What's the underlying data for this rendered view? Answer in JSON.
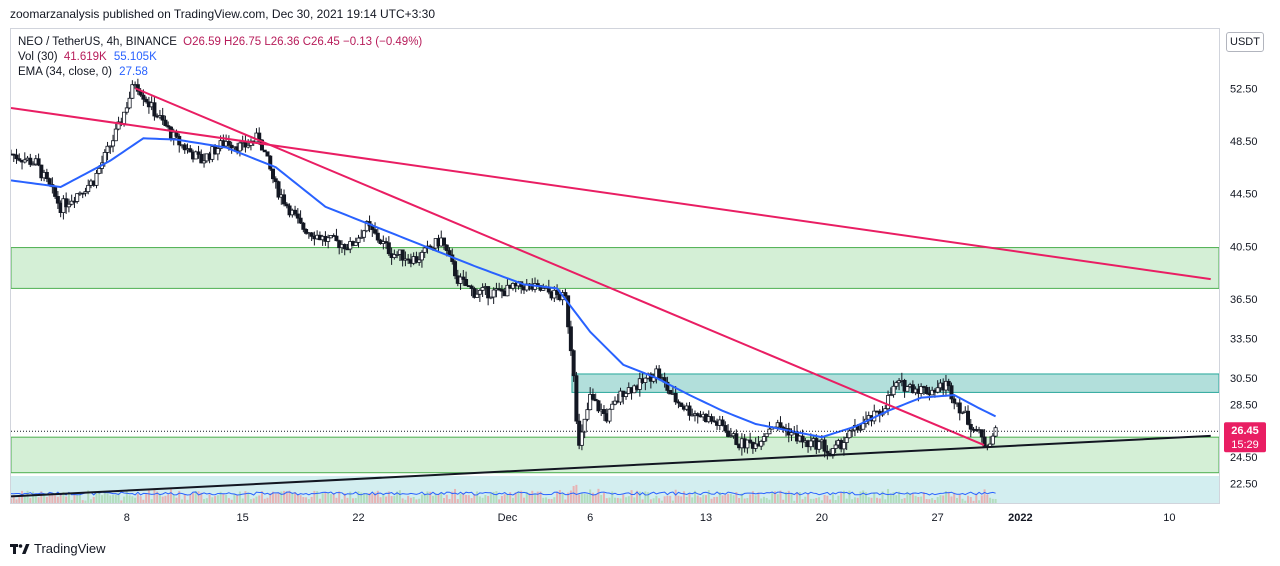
{
  "header": {
    "published": "zoomarzanalysis published on TradingView.com, Dec 30, 2021 19:14 UTC+3:30"
  },
  "legend": {
    "symbol": "NEO / TetherUS, 4h, BINANCE",
    "ohlc": "O26.59  H26.75  L26.36  C26.45  −0.13 (−0.49%)",
    "vol_label": "Vol (30)",
    "vol_value1": "41.619K",
    "vol_value2": "55.105K",
    "ema_label": "EMA (34, close, 0)",
    "ema_value": "27.58"
  },
  "currency_button": "USDT",
  "footer": {
    "brand": "TradingView"
  },
  "price_badge": {
    "price": "26.45",
    "countdown": "15:29",
    "color": "#e91e63"
  },
  "colors": {
    "up": "#26a69a",
    "down": "#ef5350",
    "candle_body": "#131722",
    "ema": "#2962ff",
    "trendline": "#e91e63",
    "support_line": "#131722",
    "zone_green": "#d4efd6",
    "zone_teal": "#b2dfdb",
    "volume_bg": "#d3eef0"
  },
  "chart_data": {
    "type": "candlestick",
    "symbol": "NEO / TetherUS",
    "interval": "4h",
    "exchange": "BINANCE",
    "y_ticks": [
      52.5,
      48.5,
      44.5,
      40.5,
      36.5,
      33.5,
      30.5,
      28.5,
      26.45,
      24.5,
      22.5
    ],
    "y_tick_labels": [
      "52.50",
      "48.50",
      "44.50",
      "40.50",
      "36.50",
      "33.50",
      "30.50",
      "28.50",
      "24.50",
      "22.50"
    ],
    "x_tick_labels": [
      "8",
      "15",
      "22",
      "Dec",
      "6",
      "13",
      "20",
      "27",
      "2022",
      "10"
    ],
    "x_tick_days": [
      7,
      14,
      21,
      30,
      35,
      42,
      49,
      56,
      61,
      70
    ],
    "ylim": [
      21.0,
      57.0
    ],
    "x_range_days": [
      0.0,
      73.0
    ],
    "last_price": 26.45,
    "ohlc_last": {
      "open": 26.59,
      "high": 26.75,
      "low": 26.36,
      "close": 26.45,
      "change": -0.13,
      "change_pct": -0.49
    },
    "zones": [
      {
        "name": "resistance-zone-upper",
        "low": 37.3,
        "high": 40.4,
        "style": "green"
      },
      {
        "name": "resistance-zone-middle",
        "low": 29.4,
        "high": 30.8,
        "style": "teal"
      },
      {
        "name": "support-zone-lower",
        "low": 23.3,
        "high": 26.0,
        "style": "green"
      }
    ],
    "trendlines": [
      {
        "name": "long-downtrend-line",
        "points": [
          [
            0.0,
            51.0
          ],
          [
            72.5,
            38.0
          ]
        ]
      },
      {
        "name": "steep-downtrend-line",
        "points": [
          [
            7.5,
            52.5
          ],
          [
            58.8,
            25.4
          ]
        ]
      },
      {
        "name": "rising-support-line",
        "points": [
          [
            0.0,
            21.5
          ],
          [
            72.5,
            26.1
          ]
        ]
      }
    ],
    "price_path": [
      [
        0.0,
        47.5
      ],
      [
        1.5,
        46.8
      ],
      [
        3.0,
        43.5
      ],
      [
        5.0,
        45.5
      ],
      [
        6.5,
        49.5
      ],
      [
        7.5,
        53.0
      ],
      [
        8.5,
        51.0
      ],
      [
        10.0,
        48.5
      ],
      [
        11.5,
        47.0
      ],
      [
        13.0,
        48.5
      ],
      [
        14.0,
        48.0
      ],
      [
        15.0,
        48.8
      ],
      [
        16.0,
        45.0
      ],
      [
        17.5,
        42.0
      ],
      [
        19.0,
        41.0
      ],
      [
        20.5,
        40.5
      ],
      [
        21.5,
        42.0
      ],
      [
        23.0,
        40.0
      ],
      [
        24.5,
        39.5
      ],
      [
        26.0,
        41.0
      ],
      [
        27.0,
        38.0
      ],
      [
        28.0,
        37.0
      ],
      [
        29.5,
        37.0
      ],
      [
        31.0,
        37.5
      ],
      [
        32.5,
        37.0
      ],
      [
        33.5,
        36.5
      ],
      [
        34.0,
        31.0
      ],
      [
        34.3,
        25.0
      ],
      [
        35.0,
        29.0
      ],
      [
        36.0,
        27.5
      ],
      [
        37.0,
        29.5
      ],
      [
        38.0,
        30.0
      ],
      [
        39.0,
        31.0
      ],
      [
        40.0,
        29.0
      ],
      [
        41.0,
        28.0
      ],
      [
        42.0,
        27.5
      ],
      [
        43.0,
        26.8
      ],
      [
        44.0,
        25.5
      ],
      [
        45.0,
        25.5
      ],
      [
        46.0,
        27.0
      ],
      [
        47.0,
        26.5
      ],
      [
        48.0,
        25.5
      ],
      [
        49.0,
        25.5
      ],
      [
        49.5,
        24.6
      ],
      [
        50.5,
        26.0
      ],
      [
        51.5,
        27.0
      ],
      [
        52.5,
        27.8
      ],
      [
        53.5,
        30.0
      ],
      [
        54.5,
        29.8
      ],
      [
        55.5,
        29.5
      ],
      [
        56.5,
        30.0
      ],
      [
        57.0,
        29.0
      ],
      [
        57.7,
        27.5
      ],
      [
        58.5,
        26.2
      ],
      [
        58.9,
        25.4
      ],
      [
        59.5,
        26.45
      ]
    ],
    "ema_34_path": [
      [
        0.0,
        45.5
      ],
      [
        3.0,
        45.0
      ],
      [
        6.0,
        47.0
      ],
      [
        8.0,
        48.7
      ],
      [
        10.0,
        48.6
      ],
      [
        13.0,
        48.0
      ],
      [
        16.0,
        46.5
      ],
      [
        19.0,
        43.5
      ],
      [
        22.0,
        42.0
      ],
      [
        25.0,
        40.5
      ],
      [
        28.0,
        39.0
      ],
      [
        31.0,
        37.6
      ],
      [
        33.0,
        37.3
      ],
      [
        35.0,
        34.0
      ],
      [
        37.0,
        31.5
      ],
      [
        39.0,
        30.5
      ],
      [
        41.0,
        29.2
      ],
      [
        43.0,
        28.0
      ],
      [
        45.0,
        27.0
      ],
      [
        47.0,
        26.5
      ],
      [
        49.0,
        26.0
      ],
      [
        51.0,
        26.8
      ],
      [
        53.0,
        28.0
      ],
      [
        55.0,
        29.0
      ],
      [
        57.0,
        29.2
      ],
      [
        58.5,
        28.2
      ],
      [
        59.5,
        27.58
      ]
    ]
  }
}
